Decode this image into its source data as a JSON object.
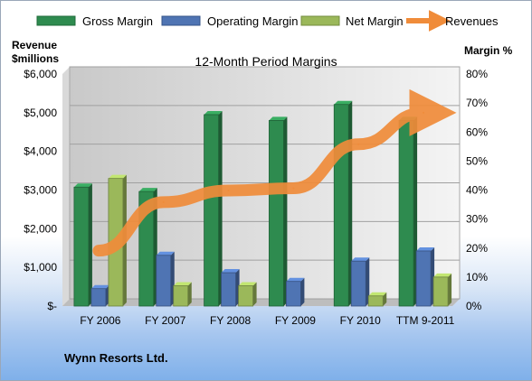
{
  "chart_data": {
    "type": "bar",
    "title": "12-Month Period Margins",
    "categories": [
      "FY 2006",
      "FY 2007",
      "FY 2008",
      "FY 2009",
      "FY 2010",
      "TTM 9-2011"
    ],
    "series": [
      {
        "name": "Gross Margin",
        "axis": "right",
        "color": "#2e8b4f",
        "values": [
          41,
          39.5,
          66,
          64,
          69.5,
          64
        ]
      },
      {
        "name": "Operating Margin",
        "axis": "right",
        "color": "#4f74b3",
        "values": [
          6,
          17.5,
          11.5,
          8.5,
          15.5,
          19
        ]
      },
      {
        "name": "Net Margin",
        "axis": "right",
        "color": "#9bb85a",
        "values": [
          44,
          7,
          7,
          0,
          3.5,
          10
        ]
      },
      {
        "name": "Revenues",
        "axis": "left",
        "color": "#f08c3a",
        "values": [
          1432,
          2687,
          2988,
          3046,
          4184,
          5000
        ]
      }
    ],
    "left_axis": {
      "label_line1": "Revenue",
      "label_line2": "$millions",
      "min": 0,
      "max": 6000,
      "ticks": [
        "$-",
        "$1,000",
        "$2,000",
        "$3,000",
        "$4,000",
        "$5,000",
        "$6,000"
      ]
    },
    "right_axis": {
      "label": "Margin %",
      "min": 0,
      "max": 80,
      "ticks": [
        "0%",
        "10%",
        "20%",
        "30%",
        "40%",
        "50%",
        "60%",
        "70%",
        "80%"
      ]
    },
    "legend": {
      "position": "top",
      "entries": [
        "Gross Margin",
        "Operating Margin",
        "Net Margin",
        "Revenues"
      ]
    },
    "grid": true
  },
  "footer": "Wynn Resorts Ltd."
}
